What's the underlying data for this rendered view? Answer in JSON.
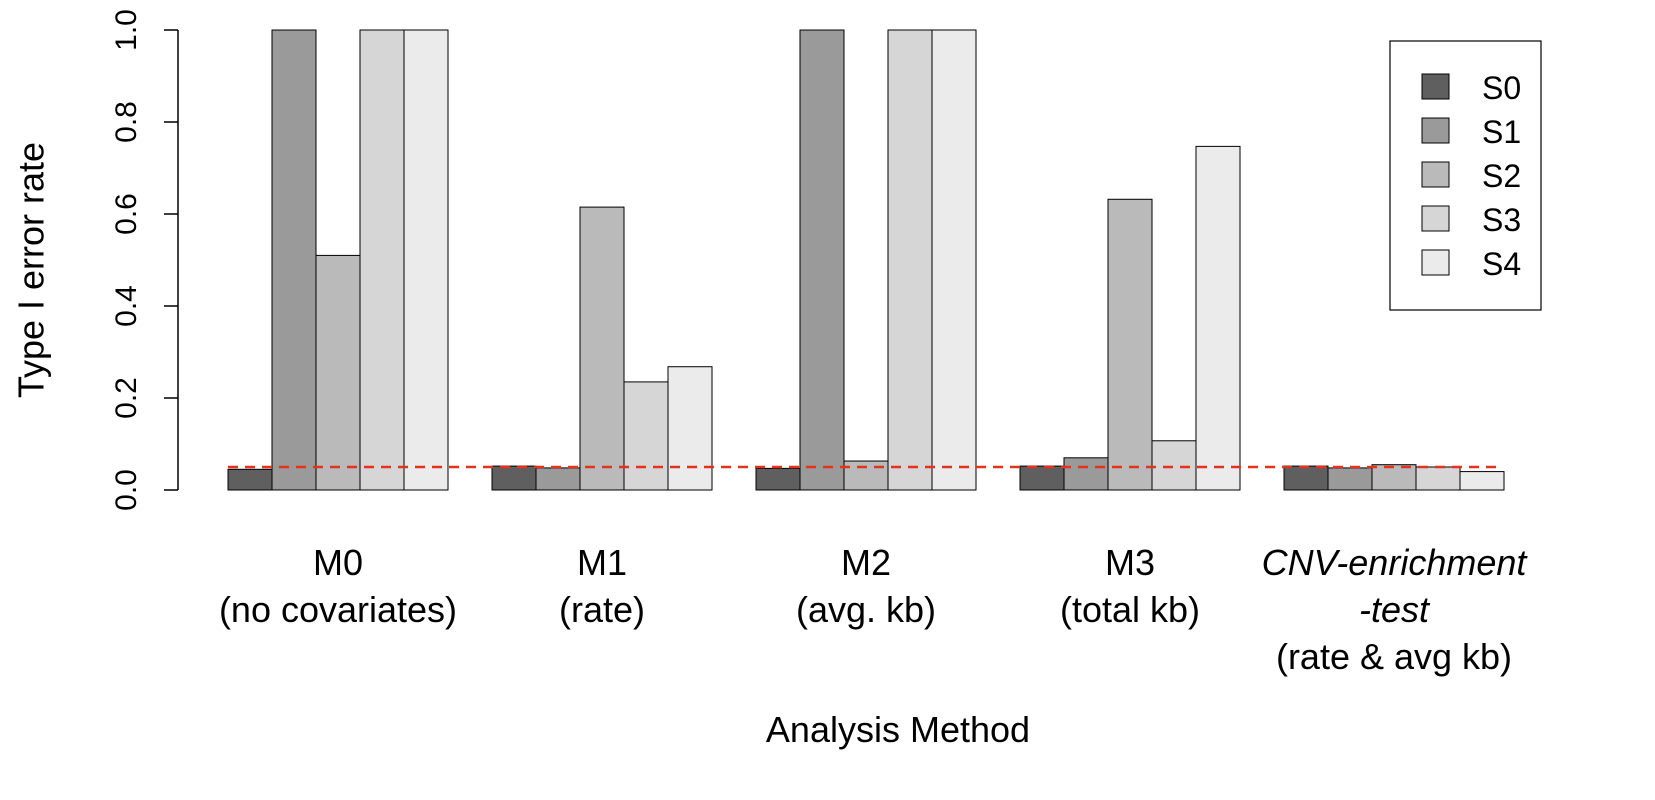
{
  "chart_data": {
    "type": "bar",
    "title": "",
    "xlabel": "Analysis Method",
    "ylabel": "Type I error rate",
    "ylim": [
      0,
      1.0
    ],
    "yticks": [
      "0.0",
      "0.2",
      "0.4",
      "0.6",
      "0.8",
      "1.0"
    ],
    "grid": false,
    "legend_position": "top-right",
    "categories": [
      {
        "lines": [
          "M0",
          "(no covariates)"
        ],
        "italic_lines": [
          false,
          false
        ]
      },
      {
        "lines": [
          "M1",
          "(rate)"
        ],
        "italic_lines": [
          false,
          false
        ]
      },
      {
        "lines": [
          "M2",
          "(avg. kb)"
        ],
        "italic_lines": [
          false,
          false
        ]
      },
      {
        "lines": [
          "M3",
          "(total kb)"
        ],
        "italic_lines": [
          false,
          false
        ]
      },
      {
        "lines": [
          "CNV-enrichment",
          "-test",
          "(rate & avg kb)"
        ],
        "italic_lines": [
          true,
          true,
          false
        ]
      }
    ],
    "series": [
      {
        "name": "S0",
        "color": "#5f5f5f",
        "values": [
          0.045,
          0.052,
          0.047,
          0.052,
          0.052
        ]
      },
      {
        "name": "S1",
        "color": "#9a9a9a",
        "values": [
          1.0,
          0.048,
          1.0,
          0.07,
          0.048
        ]
      },
      {
        "name": "S2",
        "color": "#bababa",
        "values": [
          0.51,
          0.615,
          0.063,
          0.632,
          0.055
        ]
      },
      {
        "name": "S3",
        "color": "#d6d6d6",
        "values": [
          1.0,
          0.235,
          1.0,
          0.107,
          0.05
        ]
      },
      {
        "name": "S4",
        "color": "#ebebeb",
        "values": [
          1.0,
          0.268,
          1.0,
          0.747,
          0.04
        ]
      }
    ],
    "reference_line": {
      "y": 0.05,
      "color": "#e2331f",
      "style": "dashed"
    }
  }
}
